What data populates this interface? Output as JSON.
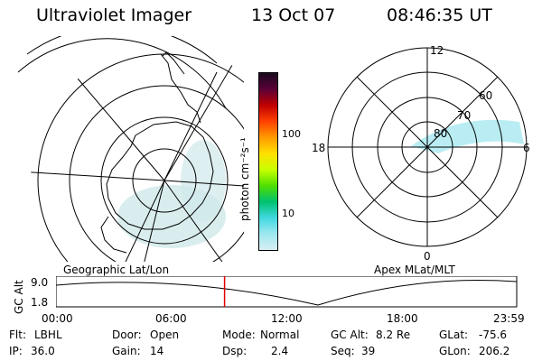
{
  "header": {
    "instrument": "Ultraviolet Imager",
    "date": "13 Oct 07",
    "time": "08:46:35 UT"
  },
  "colorbar": {
    "unit_label": "photon cm⁻²s⁻¹",
    "ticks": [
      "100",
      "10"
    ],
    "colors": [
      "#1a0a1e",
      "#5a0038",
      "#c00000",
      "#ff4000",
      "#ff9a00",
      "#ffe000",
      "#c8ff00",
      "#50e000",
      "#00c070",
      "#40d8e0",
      "#9ee8f0",
      "#d8eef2"
    ]
  },
  "left_map": {
    "label": "Geographic Lat/Lon",
    "aurora_color": "#cfe8ea"
  },
  "right_map": {
    "label": "Apex MLat/MLT",
    "mlt_labels": {
      "top": "12",
      "left": "18",
      "right": "6",
      "bottom": "0"
    },
    "lat_labels": [
      "80",
      "70",
      "60"
    ],
    "aurora_color": "#a8e8f0"
  },
  "altitude_plot": {
    "ylabel": "GC Alt",
    "yticks": [
      "9.0",
      "1.8"
    ],
    "xticks": [
      "00:00",
      "06:00",
      "12:00",
      "18:00",
      "23:59"
    ],
    "marker_time": "08:46:35",
    "marker_color": "#e00000"
  },
  "status": {
    "flt_label": "Flt:",
    "flt_value": "LBHL",
    "ip_label": "IP:",
    "ip_value": "36.0",
    "door_label": "Door:",
    "door_value": "Open",
    "gain_label": "Gain:",
    "gain_value": "14",
    "mode_label": "Mode:",
    "mode_value": "Normal",
    "dsp_label": "Dsp:",
    "dsp_value": "2.4",
    "gcalt_label": "GC Alt:",
    "gcalt_value": "8.2 Re",
    "seq_label": "Seq:",
    "seq_value": "39",
    "glat_label": "GLat:",
    "glat_value": "-75.6",
    "glon_label": "GLon:",
    "glon_value": "206.2"
  }
}
